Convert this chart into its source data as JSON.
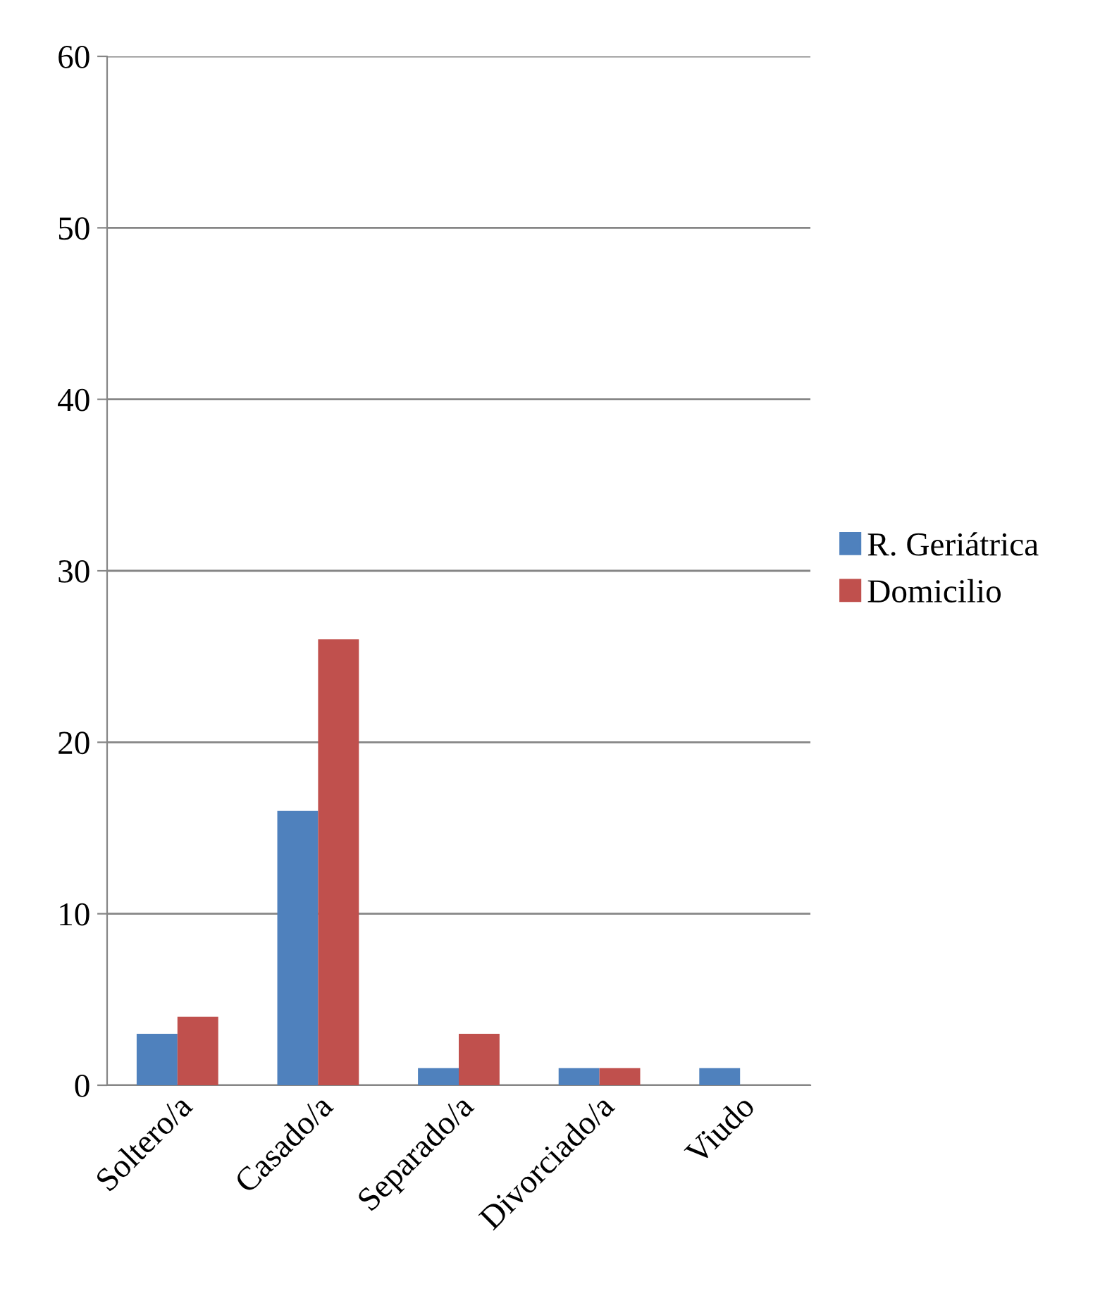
{
  "chart_data": {
    "type": "bar",
    "categories": [
      "Soltero/a",
      "Casado/a",
      "Separado/a",
      "Divorciado/a",
      "Viudo"
    ],
    "series": [
      {
        "name": "R. Geriátrica",
        "color": "#4f81bd",
        "values": [
          3,
          16,
          1,
          1,
          1
        ]
      },
      {
        "name": "Domicilio",
        "color": "#c0504d",
        "values": [
          4,
          26,
          3,
          1,
          null
        ]
      }
    ],
    "ylim": [
      0,
      60
    ],
    "yticks": [
      0,
      10,
      20,
      30,
      40,
      50,
      60
    ],
    "grid": "y",
    "legend": "right"
  }
}
